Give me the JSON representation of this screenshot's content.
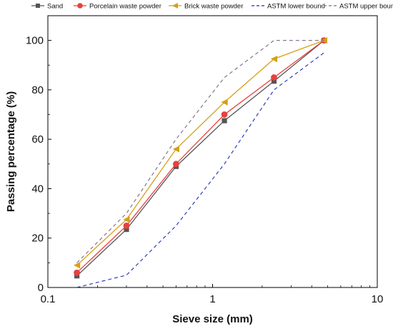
{
  "chart_data": {
    "type": "line",
    "title": "",
    "xlabel": "Sieve size (mm)",
    "ylabel": "Passing percentage (%)",
    "xscale": "log",
    "xlim": [
      0.1,
      10
    ],
    "ylim": [
      0,
      110
    ],
    "x_ticks": [
      0.1,
      1,
      10
    ],
    "x_tick_labels": [
      "0.1",
      "1",
      "10"
    ],
    "y_ticks": [
      0,
      20,
      40,
      60,
      80,
      100
    ],
    "y_tick_labels": [
      "0",
      "20",
      "40",
      "60",
      "80",
      "100"
    ],
    "grid": false,
    "legend_position": "top",
    "series": [
      {
        "name": "Sand",
        "color": "#555555",
        "marker": "square",
        "dash": "solid",
        "x": [
          0.15,
          0.3,
          0.6,
          1.18,
          2.36,
          4.75
        ],
        "y": [
          4.7,
          23.5,
          49,
          67.5,
          83.5,
          100
        ]
      },
      {
        "name": "Porcelain waste powder",
        "color": "#e8413e",
        "marker": "circle",
        "dash": "solid",
        "x": [
          0.15,
          0.3,
          0.6,
          1.18,
          2.36,
          4.75
        ],
        "y": [
          6,
          25,
          50,
          70,
          85,
          100
        ]
      },
      {
        "name": "Brick waste powder",
        "color": "#d4a017",
        "marker": "triangle-left",
        "dash": "solid",
        "x": [
          0.15,
          0.3,
          0.6,
          1.18,
          2.36,
          4.75
        ],
        "y": [
          9,
          27.5,
          56,
          75,
          92.5,
          100
        ]
      },
      {
        "name": "ASTM lower bound",
        "color": "#1f2fb5",
        "marker": "none",
        "dash": "dashed",
        "x": [
          0.15,
          0.3,
          0.6,
          1.18,
          2.36,
          4.75
        ],
        "y": [
          0,
          5,
          25,
          50,
          80,
          95
        ]
      },
      {
        "name": "ASTM upper bound",
        "color": "#7d6a80",
        "marker": "none",
        "dash": "dashed",
        "x": [
          0.15,
          0.3,
          0.6,
          1.18,
          2.36,
          4.75
        ],
        "y": [
          10,
          30,
          60,
          85,
          100,
          100
        ]
      }
    ]
  }
}
